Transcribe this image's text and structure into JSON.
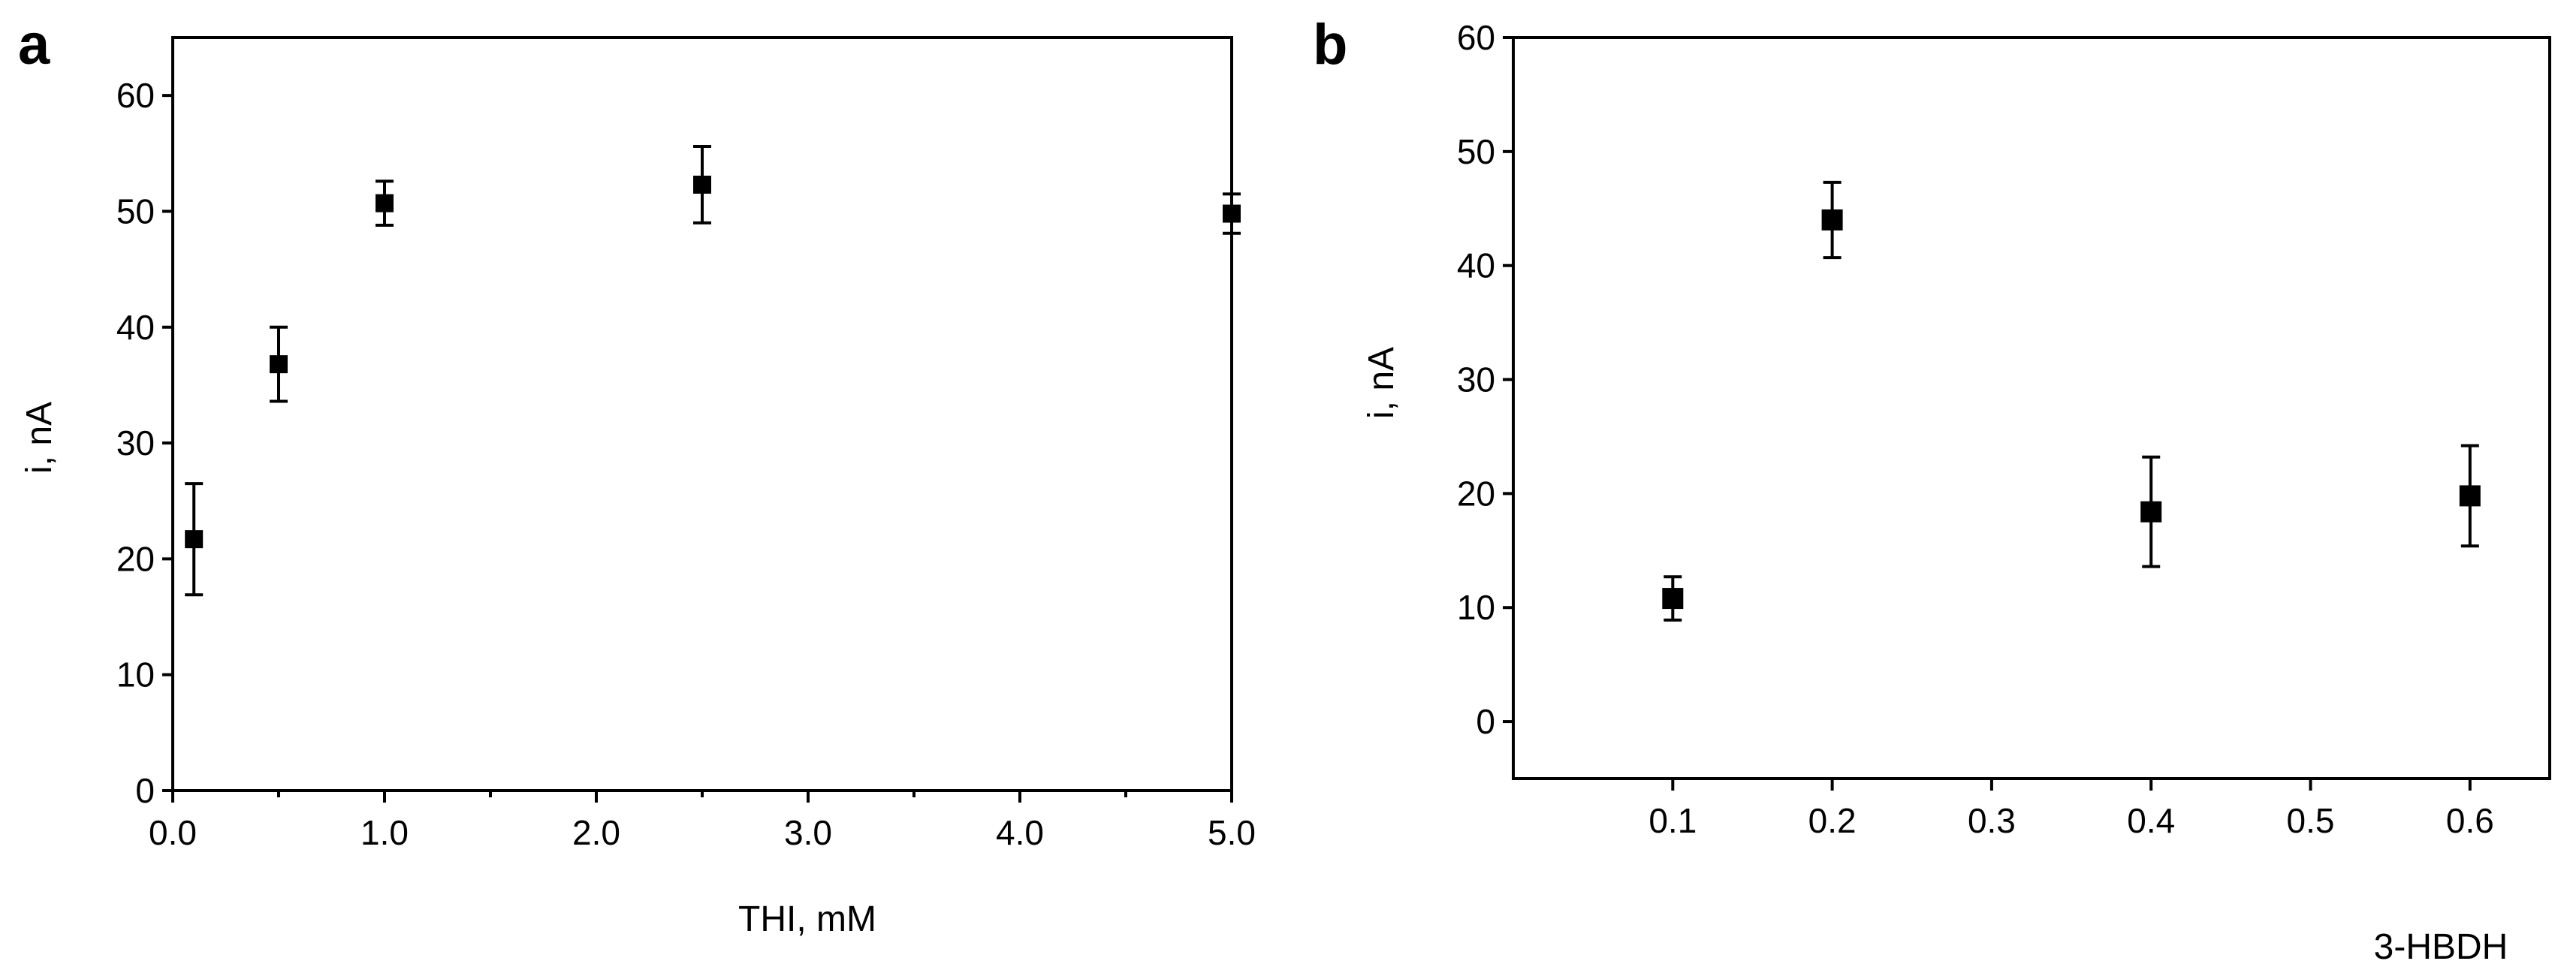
{
  "chart_data": [
    {
      "panel": "a",
      "type": "scatter",
      "title": "",
      "xlabel": "THI, mM",
      "ylabel": "i, nA",
      "xlim": [
        0,
        5.0
      ],
      "ylim": [
        0,
        65
      ],
      "xticks": [
        0,
        1,
        2,
        3,
        4,
        5
      ],
      "xtick_labels": [
        "0.0",
        "1.0",
        "2.0",
        "3.0",
        "4.0",
        "5.0"
      ],
      "yticks": [
        0,
        10,
        20,
        30,
        40,
        50,
        60
      ],
      "ytick_labels": [
        "0",
        "10",
        "20",
        "30",
        "40",
        "50",
        "60"
      ],
      "grid": false,
      "series": [
        {
          "x": [
            0.1,
            0.5,
            1.0,
            2.5,
            5.0
          ],
          "y": [
            21.7,
            36.8,
            50.7,
            52.3,
            49.8
          ],
          "yerr": [
            4.8,
            3.2,
            1.9,
            3.3,
            1.7
          ]
        }
      ]
    },
    {
      "panel": "b",
      "type": "scatter",
      "title": "",
      "xlabel": "3-HBDH",
      "ylabel": "i, nA",
      "xlim": [
        0,
        0.65
      ],
      "ylim": [
        -5,
        60
      ],
      "xticks": [
        0.1,
        0.2,
        0.3,
        0.4,
        0.5,
        0.6
      ],
      "xtick_labels": [
        "0.1",
        "0.2",
        "0.3",
        "0.4",
        "0.5",
        "0.6"
      ],
      "yticks": [
        0,
        10,
        20,
        30,
        40,
        50,
        60
      ],
      "ytick_labels": [
        "0",
        "10",
        "20",
        "30",
        "40",
        "50",
        "60"
      ],
      "grid": false,
      "series": [
        {
          "x": [
            0.1,
            0.2,
            0.4,
            0.6
          ],
          "y": [
            10.8,
            44.0,
            18.4,
            19.8
          ],
          "yerr": [
            1.9,
            3.3,
            4.8,
            4.4
          ]
        }
      ]
    }
  ]
}
